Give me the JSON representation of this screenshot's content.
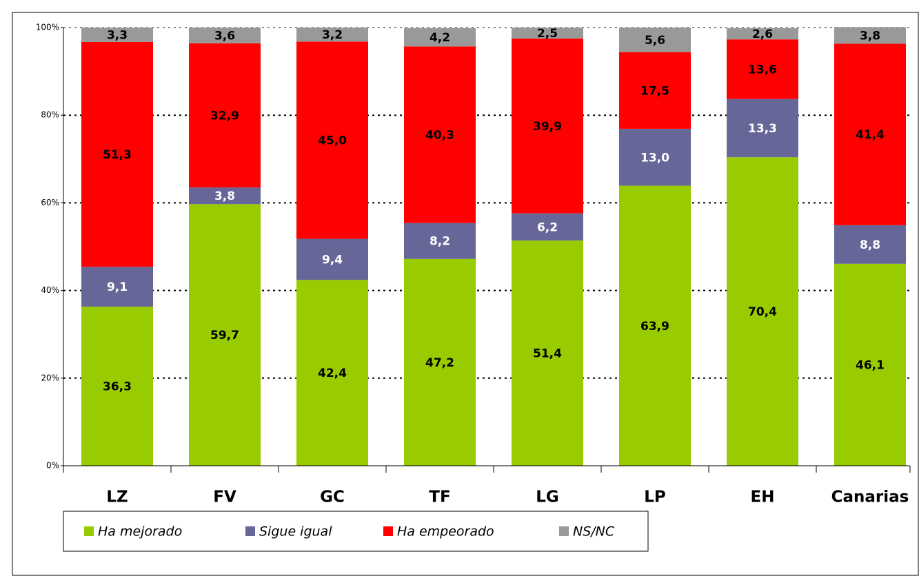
{
  "chart_data": {
    "type": "stacked-bar",
    "categories": [
      "LZ",
      "FV",
      "GC",
      "TF",
      "LG",
      "LP",
      "EH",
      "Canarias"
    ],
    "series": [
      {
        "name": "Ha mejorado",
        "color": "#99cc00",
        "values": [
          36.3,
          59.7,
          42.4,
          47.2,
          51.4,
          63.9,
          70.4,
          46.1
        ],
        "value_labels": [
          "36,3",
          "59,7",
          "42,4",
          "47,2",
          "51,4",
          "63,9",
          "70,4",
          "46,1"
        ]
      },
      {
        "name": "Sigue igual",
        "color": "#666699",
        "values": [
          9.1,
          3.8,
          9.4,
          8.2,
          6.2,
          13.0,
          13.3,
          8.8
        ],
        "value_labels": [
          "9,1",
          "3,8",
          "9,4",
          "8,2",
          "6,2",
          "13,0",
          "13,3",
          "8,8"
        ]
      },
      {
        "name": "Ha empeorado",
        "color": "#ff0000",
        "values": [
          51.3,
          32.9,
          45.0,
          40.3,
          39.9,
          17.5,
          13.6,
          41.4
        ],
        "value_labels": [
          "51,3",
          "32,9",
          "45,0",
          "40,3",
          "39,9",
          "17,5",
          "13,6",
          "41,4"
        ]
      },
      {
        "name": "NS/NC",
        "color": "#999999",
        "values": [
          3.3,
          3.6,
          3.2,
          4.2,
          2.5,
          5.6,
          2.6,
          3.8
        ],
        "value_labels": [
          "3,3",
          "3,6",
          "3,2",
          "4,2",
          "2,5",
          "5,6",
          "2,6",
          "3,8"
        ]
      }
    ],
    "ylim": [
      0,
      100
    ],
    "yticks": [
      {
        "value": 0,
        "label": "0%"
      },
      {
        "value": 20,
        "label": "20%"
      },
      {
        "value": 40,
        "label": "40%"
      },
      {
        "value": 60,
        "label": "60%"
      },
      {
        "value": 80,
        "label": "80%"
      },
      {
        "value": 100,
        "label": "100%"
      }
    ],
    "grid": true,
    "legend": "bottom"
  }
}
